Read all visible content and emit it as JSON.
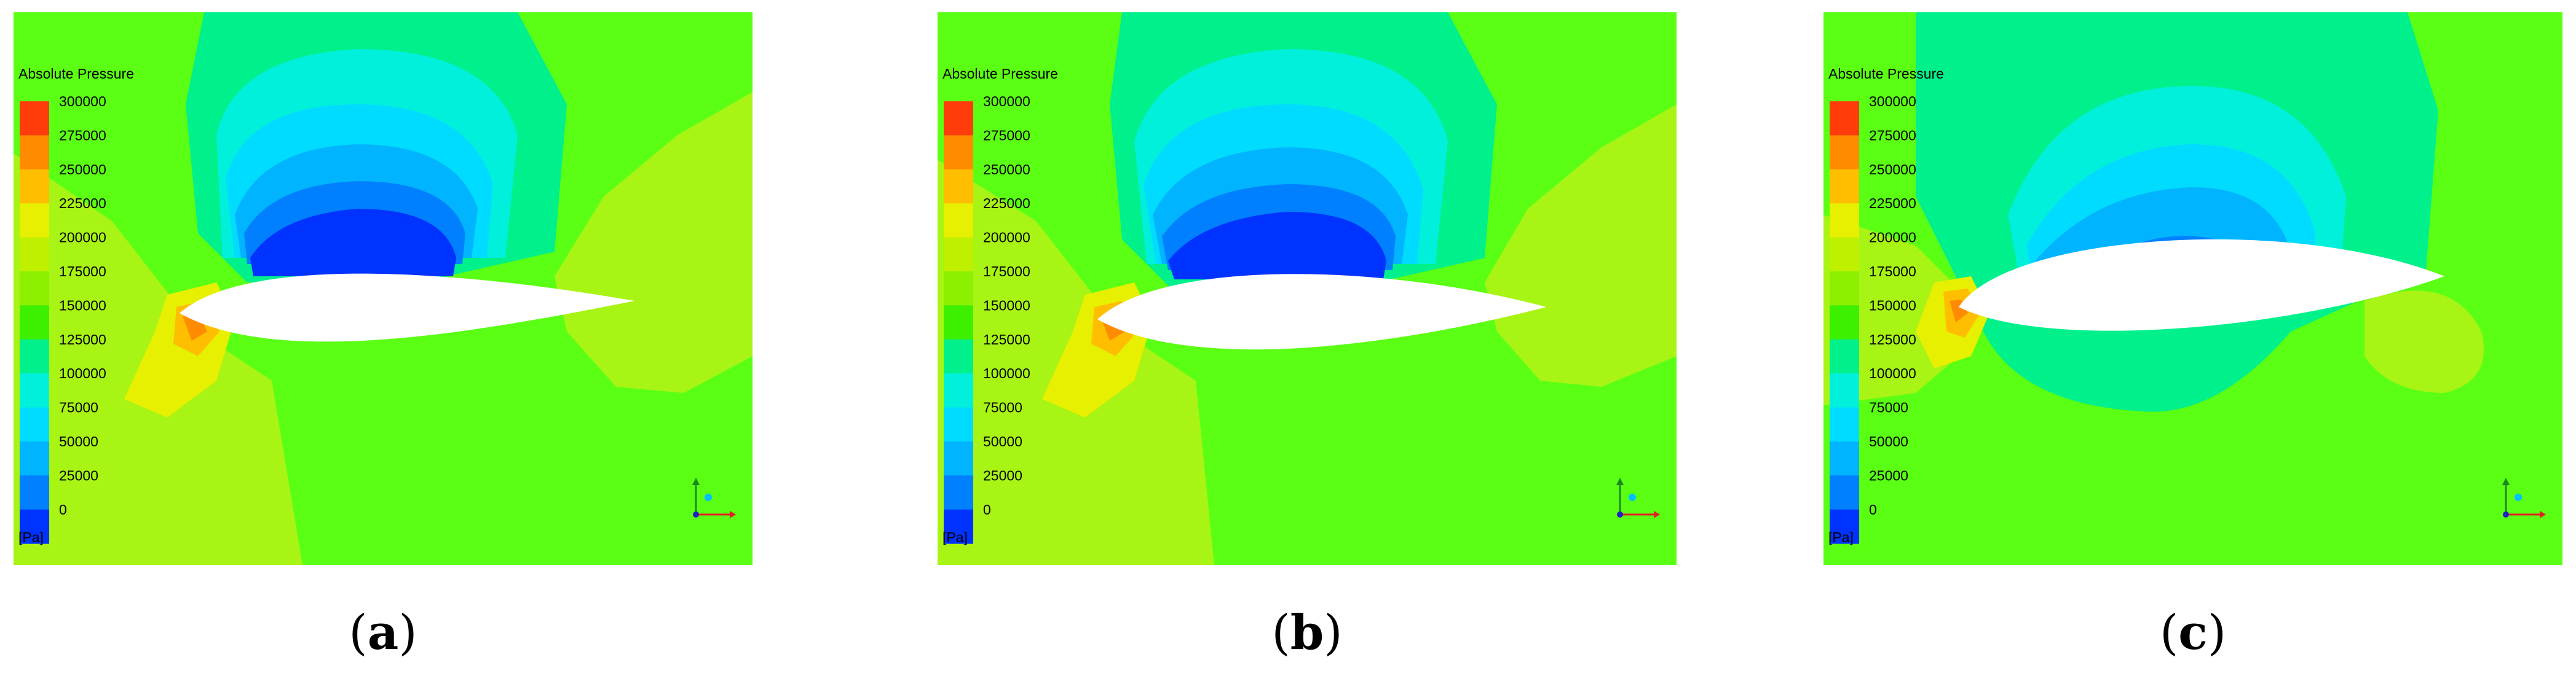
{
  "legend": {
    "title": "Absolute Pressure",
    "unit": "[Pa]",
    "levels": [
      "300000",
      "275000",
      "250000",
      "225000",
      "200000",
      "175000",
      "150000",
      "125000",
      "100000",
      "75000",
      "50000",
      "25000",
      "0"
    ],
    "band_colors": [
      "#ff3c0a",
      "#ff8c00",
      "#ffbe00",
      "#e6f000",
      "#bef000",
      "#8cf000",
      "#3cf000",
      "#00f08c",
      "#00f0dc",
      "#00dcff",
      "#00b4ff",
      "#0080ff",
      "#0033ff"
    ]
  },
  "panels": [
    {
      "caption_letter": "a",
      "open": "(",
      "close": ")"
    },
    {
      "caption_letter": "b",
      "open": "(",
      "close": ")"
    },
    {
      "caption_letter": "c",
      "open": "(",
      "close": ")"
    }
  ]
}
